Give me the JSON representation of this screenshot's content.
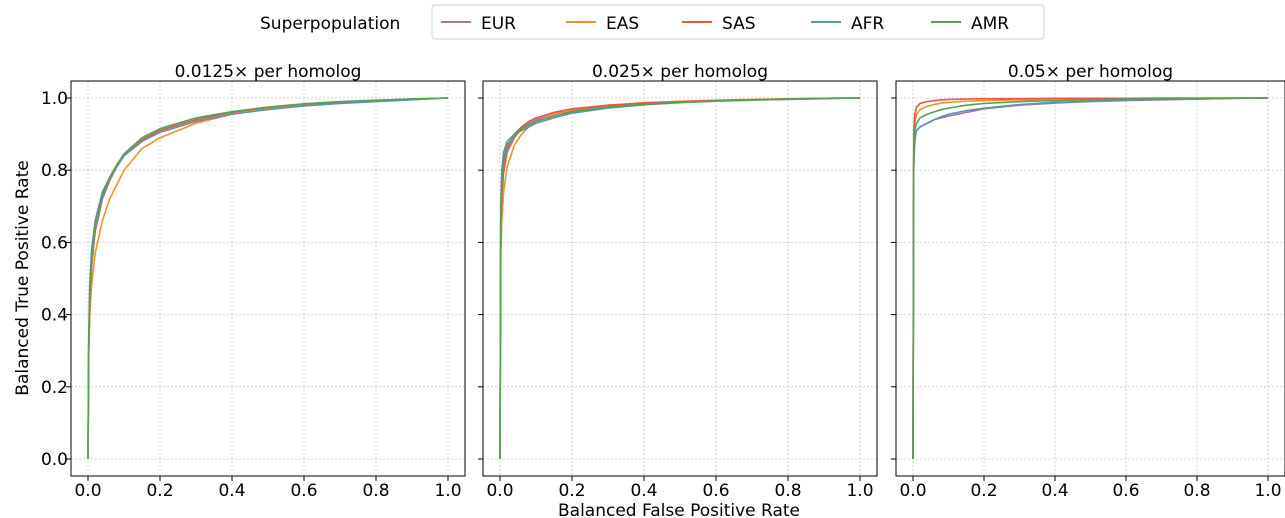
{
  "legend": {
    "title": "Superpopulation",
    "entries": [
      {
        "name": "EUR",
        "color": "#a974a6"
      },
      {
        "name": "EAS",
        "color": "#f28e2b"
      },
      {
        "name": "SAS",
        "color": "#e8574a"
      },
      {
        "name": "AFR",
        "color": "#5b93b5"
      },
      {
        "name": "AMR",
        "color": "#59a14f"
      }
    ]
  },
  "xlabel": "Balanced  False Positive Rate",
  "ylabel": "Balanced  True Positive Rate",
  "chart_data": [
    {
      "type": "line",
      "title": "0.0125× per homolog",
      "xlim": [
        0,
        1
      ],
      "ylim": [
        0,
        1
      ],
      "xticks": [
        "0.0",
        "0.2",
        "0.4",
        "0.6",
        "0.8",
        "1.0"
      ],
      "yticks": [
        "0.0",
        "0.2",
        "0.4",
        "0.6",
        "0.8",
        "1.0"
      ],
      "grid": true,
      "series": [
        {
          "name": "EUR",
          "x": [
            0,
            0.002,
            0.005,
            0.01,
            0.02,
            0.04,
            0.06,
            0.08,
            0.1,
            0.15,
            0.2,
            0.3,
            0.4,
            0.5,
            0.6,
            0.7,
            0.8,
            0.9,
            1.0
          ],
          "y": [
            0,
            0.3,
            0.44,
            0.53,
            0.63,
            0.72,
            0.77,
            0.81,
            0.84,
            0.88,
            0.91,
            0.94,
            0.96,
            0.973,
            0.982,
            0.988,
            0.993,
            0.997,
            1.0
          ]
        },
        {
          "name": "EAS",
          "x": [
            0,
            0.002,
            0.005,
            0.01,
            0.02,
            0.04,
            0.06,
            0.08,
            0.1,
            0.15,
            0.2,
            0.3,
            0.4,
            0.5,
            0.6,
            0.7,
            0.8,
            0.9,
            1.0
          ],
          "y": [
            0,
            0.28,
            0.4,
            0.48,
            0.57,
            0.66,
            0.72,
            0.76,
            0.8,
            0.86,
            0.89,
            0.93,
            0.955,
            0.97,
            0.98,
            0.987,
            0.992,
            0.996,
            1.0
          ]
        },
        {
          "name": "SAS",
          "x": [
            0,
            0.002,
            0.005,
            0.01,
            0.02,
            0.04,
            0.06,
            0.08,
            0.1,
            0.15,
            0.2,
            0.3,
            0.4,
            0.5,
            0.6,
            0.7,
            0.8,
            0.9,
            1.0
          ],
          "y": [
            0,
            0.31,
            0.45,
            0.54,
            0.64,
            0.73,
            0.78,
            0.81,
            0.84,
            0.885,
            0.91,
            0.94,
            0.96,
            0.974,
            0.983,
            0.989,
            0.993,
            0.997,
            1.0
          ]
        },
        {
          "name": "AFR",
          "x": [
            0,
            0.002,
            0.005,
            0.01,
            0.02,
            0.04,
            0.06,
            0.08,
            0.1,
            0.15,
            0.2,
            0.3,
            0.4,
            0.5,
            0.6,
            0.7,
            0.8,
            0.9,
            1.0
          ],
          "y": [
            0,
            0.34,
            0.49,
            0.58,
            0.66,
            0.74,
            0.78,
            0.81,
            0.84,
            0.88,
            0.905,
            0.935,
            0.955,
            0.968,
            0.978,
            0.985,
            0.99,
            0.995,
            1.0
          ]
        },
        {
          "name": "AMR",
          "x": [
            0,
            0.002,
            0.005,
            0.01,
            0.02,
            0.04,
            0.06,
            0.08,
            0.1,
            0.15,
            0.2,
            0.3,
            0.4,
            0.5,
            0.6,
            0.7,
            0.8,
            0.9,
            1.0
          ],
          "y": [
            0,
            0.32,
            0.46,
            0.55,
            0.645,
            0.73,
            0.78,
            0.815,
            0.845,
            0.89,
            0.915,
            0.945,
            0.962,
            0.975,
            0.984,
            0.99,
            0.994,
            0.997,
            1.0
          ]
        }
      ]
    },
    {
      "type": "line",
      "title": "0.025× per homolog",
      "xlim": [
        0,
        1
      ],
      "ylim": [
        0,
        1
      ],
      "xticks": [
        "0.0",
        "0.2",
        "0.4",
        "0.6",
        "0.8",
        "1.0"
      ],
      "yticks": [
        "0.0",
        "0.2",
        "0.4",
        "0.6",
        "0.8",
        "1.0"
      ],
      "grid": true,
      "series": [
        {
          "name": "EUR",
          "x": [
            0,
            0.002,
            0.005,
            0.01,
            0.02,
            0.04,
            0.06,
            0.08,
            0.1,
            0.15,
            0.2,
            0.3,
            0.4,
            0.5,
            0.6,
            0.7,
            0.8,
            0.9,
            1.0
          ],
          "y": [
            0,
            0.6,
            0.72,
            0.79,
            0.85,
            0.89,
            0.915,
            0.93,
            0.94,
            0.955,
            0.965,
            0.977,
            0.984,
            0.989,
            0.993,
            0.995,
            0.997,
            0.999,
            1.0
          ]
        },
        {
          "name": "EAS",
          "x": [
            0,
            0.002,
            0.005,
            0.01,
            0.02,
            0.04,
            0.06,
            0.08,
            0.1,
            0.15,
            0.2,
            0.3,
            0.4,
            0.5,
            0.6,
            0.7,
            0.8,
            0.9,
            1.0
          ],
          "y": [
            0,
            0.55,
            0.66,
            0.74,
            0.81,
            0.87,
            0.9,
            0.92,
            0.935,
            0.955,
            0.968,
            0.98,
            0.987,
            0.991,
            0.994,
            0.996,
            0.998,
            0.999,
            1.0
          ]
        },
        {
          "name": "SAS",
          "x": [
            0,
            0.002,
            0.005,
            0.01,
            0.02,
            0.04,
            0.06,
            0.08,
            0.1,
            0.15,
            0.2,
            0.3,
            0.4,
            0.5,
            0.6,
            0.7,
            0.8,
            0.9,
            1.0
          ],
          "y": [
            0,
            0.62,
            0.74,
            0.81,
            0.86,
            0.9,
            0.92,
            0.935,
            0.945,
            0.96,
            0.97,
            0.98,
            0.986,
            0.99,
            0.993,
            0.995,
            0.997,
            0.999,
            1.0
          ]
        },
        {
          "name": "AFR",
          "x": [
            0,
            0.002,
            0.005,
            0.01,
            0.02,
            0.04,
            0.06,
            0.08,
            0.1,
            0.15,
            0.2,
            0.3,
            0.4,
            0.5,
            0.6,
            0.7,
            0.8,
            0.9,
            1.0
          ],
          "y": [
            0,
            0.7,
            0.8,
            0.85,
            0.88,
            0.9,
            0.91,
            0.92,
            0.93,
            0.945,
            0.958,
            0.972,
            0.981,
            0.987,
            0.991,
            0.994,
            0.996,
            0.998,
            1.0
          ]
        },
        {
          "name": "AMR",
          "x": [
            0,
            0.002,
            0.005,
            0.01,
            0.02,
            0.04,
            0.06,
            0.08,
            0.1,
            0.15,
            0.2,
            0.3,
            0.4,
            0.5,
            0.6,
            0.7,
            0.8,
            0.9,
            1.0
          ],
          "y": [
            0,
            0.65,
            0.77,
            0.83,
            0.87,
            0.895,
            0.915,
            0.925,
            0.935,
            0.95,
            0.962,
            0.975,
            0.983,
            0.988,
            0.992,
            0.995,
            0.997,
            0.999,
            1.0
          ]
        }
      ]
    },
    {
      "type": "line",
      "title": "0.05× per homolog",
      "xlim": [
        0,
        1
      ],
      "ylim": [
        0,
        1
      ],
      "xticks": [
        "0.0",
        "0.2",
        "0.4",
        "0.6",
        "0.8",
        "1.0"
      ],
      "yticks": [
        "0.0",
        "0.2",
        "0.4",
        "0.6",
        "0.8",
        "1.0"
      ],
      "grid": true,
      "series": [
        {
          "name": "EUR",
          "x": [
            0,
            0.002,
            0.005,
            0.01,
            0.02,
            0.04,
            0.06,
            0.08,
            0.1,
            0.15,
            0.2,
            0.3,
            0.4,
            0.5,
            0.6,
            0.7,
            0.8,
            0.9,
            1.0
          ],
          "y": [
            0,
            0.8,
            0.88,
            0.91,
            0.92,
            0.93,
            0.94,
            0.945,
            0.95,
            0.96,
            0.97,
            0.98,
            0.986,
            0.99,
            0.993,
            0.995,
            0.997,
            0.999,
            1.0
          ]
        },
        {
          "name": "EAS",
          "x": [
            0,
            0.002,
            0.005,
            0.01,
            0.02,
            0.04,
            0.06,
            0.08,
            0.1,
            0.15,
            0.2,
            0.3,
            0.4,
            0.5,
            0.6,
            0.7,
            0.8,
            0.9,
            1.0
          ],
          "y": [
            0,
            0.86,
            0.93,
            0.955,
            0.968,
            0.977,
            0.982,
            0.986,
            0.988,
            0.991,
            0.993,
            0.995,
            0.997,
            0.998,
            0.998,
            0.999,
            0.999,
            1.0,
            1.0
          ]
        },
        {
          "name": "SAS",
          "x": [
            0,
            0.002,
            0.005,
            0.01,
            0.02,
            0.04,
            0.06,
            0.08,
            0.1,
            0.15,
            0.2,
            0.3,
            0.4,
            0.5,
            0.6,
            0.7,
            0.8,
            0.9,
            1.0
          ],
          "y": [
            0,
            0.9,
            0.955,
            0.975,
            0.985,
            0.99,
            0.993,
            0.995,
            0.996,
            0.997,
            0.998,
            0.998,
            0.999,
            0.999,
            0.999,
            1.0,
            1.0,
            1.0,
            1.0
          ]
        },
        {
          "name": "AFR",
          "x": [
            0,
            0.002,
            0.005,
            0.01,
            0.02,
            0.04,
            0.06,
            0.08,
            0.1,
            0.15,
            0.2,
            0.3,
            0.4,
            0.5,
            0.6,
            0.7,
            0.8,
            0.9,
            1.0
          ],
          "y": [
            0,
            0.82,
            0.89,
            0.91,
            0.92,
            0.93,
            0.94,
            0.948,
            0.955,
            0.965,
            0.972,
            0.982,
            0.988,
            0.991,
            0.994,
            0.996,
            0.997,
            0.999,
            1.0
          ]
        },
        {
          "name": "AMR",
          "x": [
            0,
            0.002,
            0.005,
            0.01,
            0.02,
            0.04,
            0.06,
            0.08,
            0.1,
            0.15,
            0.2,
            0.3,
            0.4,
            0.5,
            0.6,
            0.7,
            0.8,
            0.9,
            1.0
          ],
          "y": [
            0,
            0.84,
            0.91,
            0.93,
            0.945,
            0.955,
            0.962,
            0.968,
            0.972,
            0.98,
            0.985,
            0.99,
            0.993,
            0.995,
            0.997,
            0.998,
            0.999,
            0.999,
            1.0
          ]
        }
      ]
    }
  ]
}
